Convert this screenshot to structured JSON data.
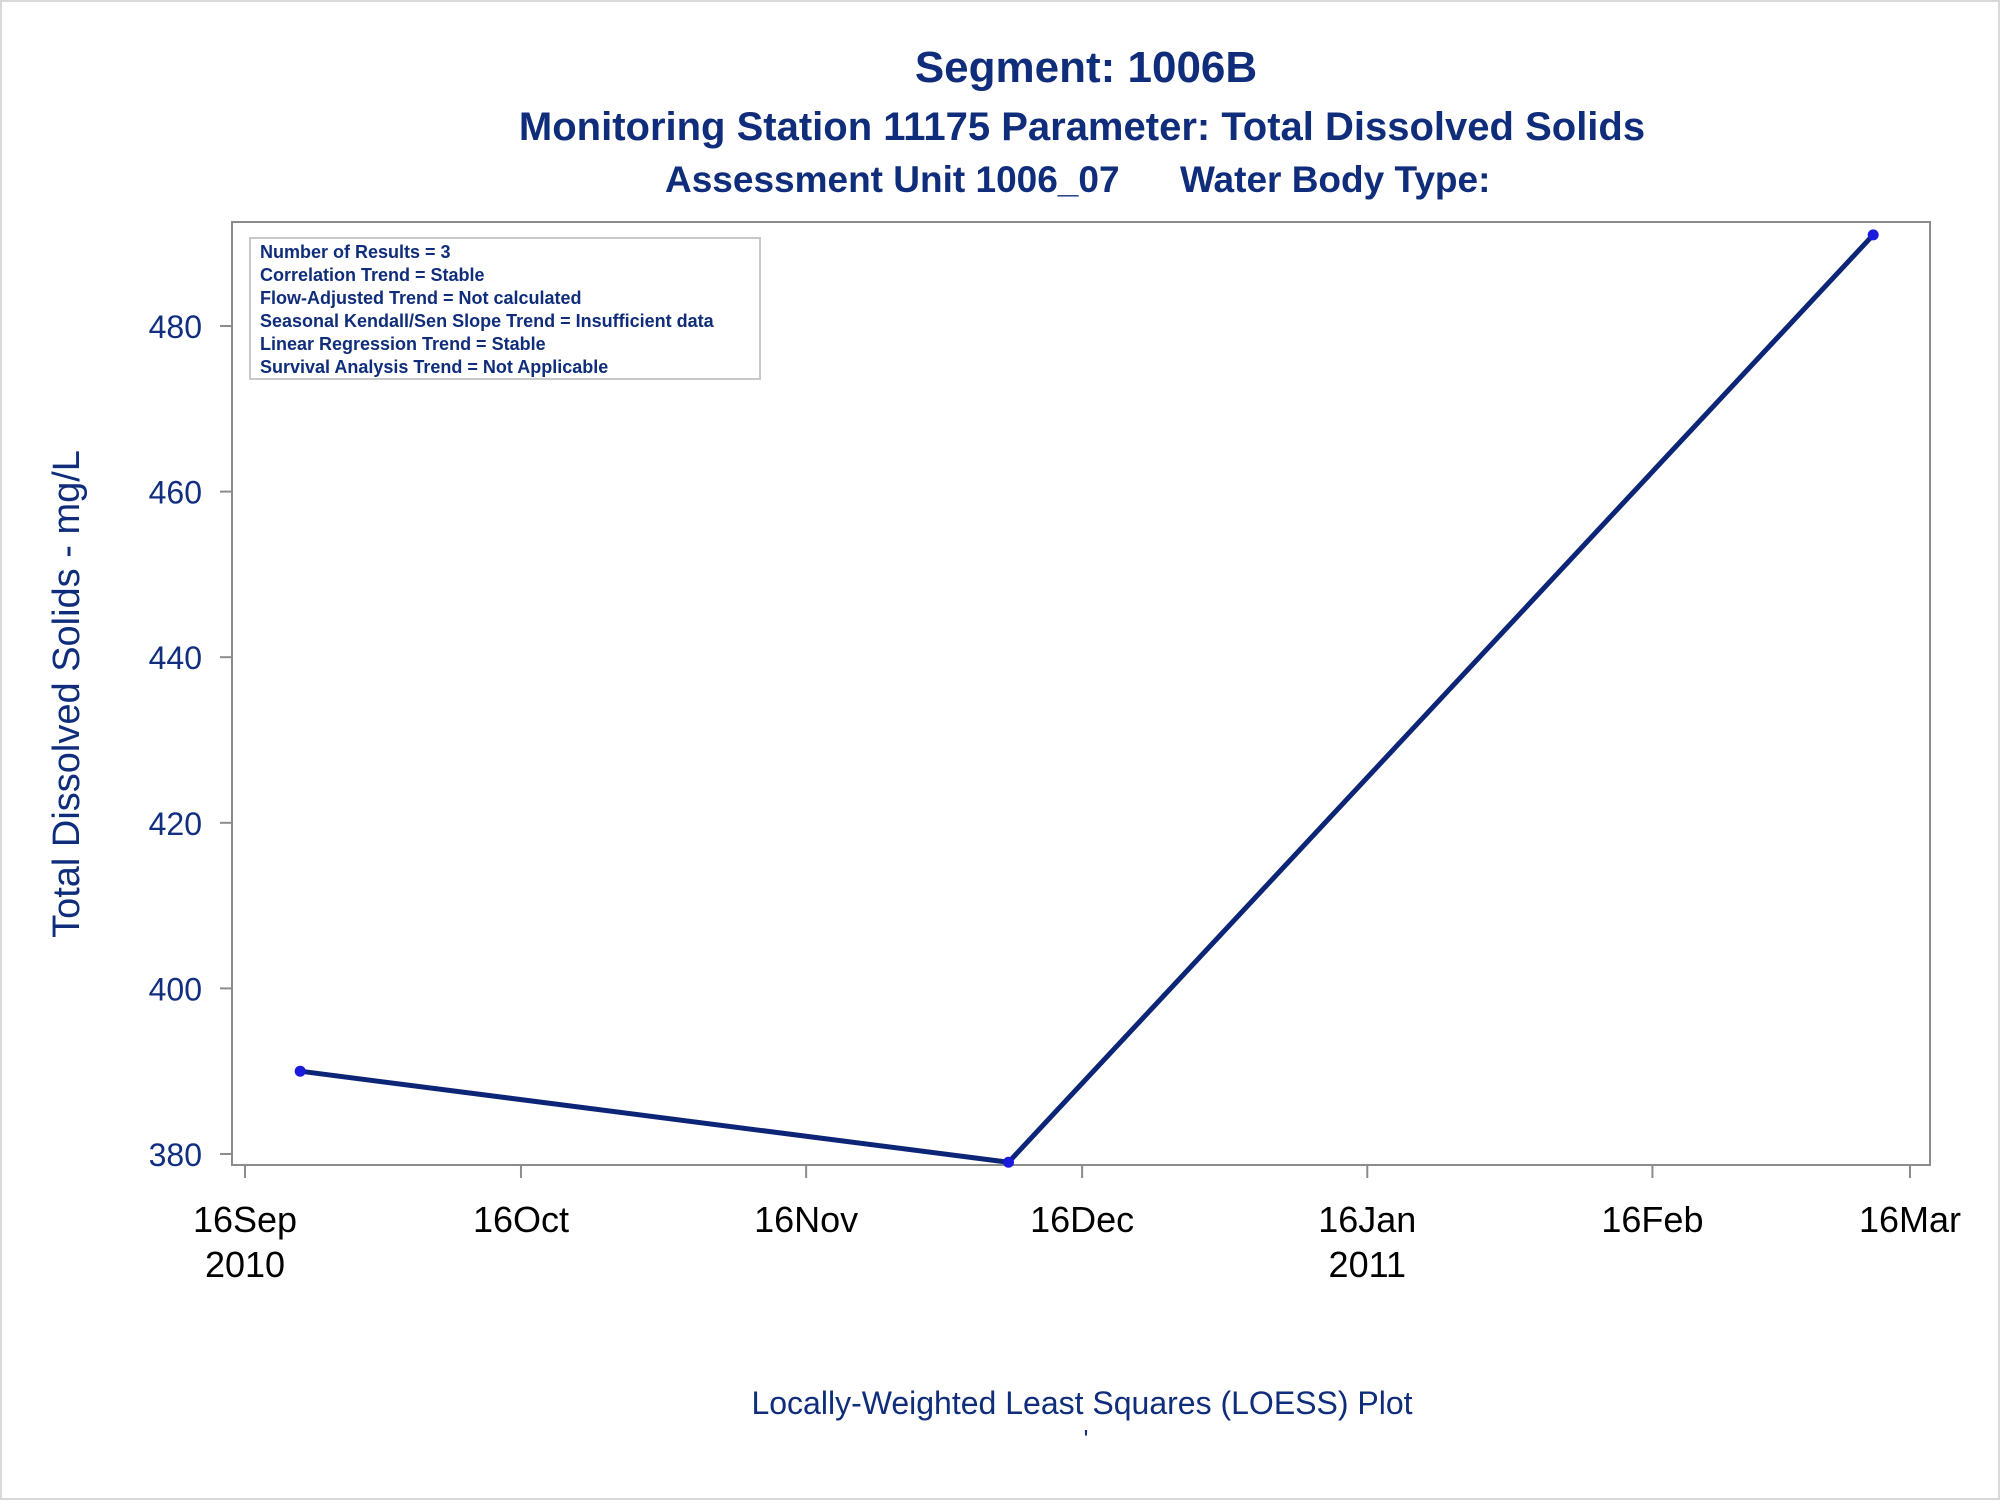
{
  "chart_data": {
    "type": "line",
    "title": "Segment: 1006B",
    "subtitle": "Monitoring Station 11175 Parameter: Total Dissolved Solids",
    "subtitle2_left": "Assessment Unit 1006_07",
    "subtitle2_right": "Water Body Type:",
    "ylabel": "Total Dissolved Solids - mg/L",
    "footnote": "Locally-Weighted Least Squares (LOESS) Plot",
    "footnote_mark": "'",
    "ylim": [
      378,
      492
    ],
    "xlim": [
      "2010-09-16",
      "2011-03-16"
    ],
    "y_ticks": [
      380,
      400,
      420,
      440,
      460,
      480
    ],
    "x_ticks": [
      {
        "date": "2010-09-16",
        "label": "16Sep",
        "year": "2010"
      },
      {
        "date": "2010-10-16",
        "label": "16Oct",
        "year": ""
      },
      {
        "date": "2010-11-16",
        "label": "16Nov",
        "year": ""
      },
      {
        "date": "2010-12-16",
        "label": "16Dec",
        "year": ""
      },
      {
        "date": "2011-01-16",
        "label": "16Jan",
        "year": "2011"
      },
      {
        "date": "2011-02-16",
        "label": "16Feb",
        "year": ""
      },
      {
        "date": "2011-03-16",
        "label": "16Mar",
        "year": ""
      }
    ],
    "series": [
      {
        "points": [
          {
            "x": "2010-09-22",
            "y": 390
          },
          {
            "x": "2010-12-08",
            "y": 379
          },
          {
            "x": "2011-03-12",
            "y": 491
          }
        ]
      }
    ],
    "stats_box": [
      "Number of Results = 3",
      "Correlation Trend = Stable",
      "Flow-Adjusted Trend = Not calculated",
      "Seasonal Kendall/Sen Slope Trend = Insufficient data",
      "Linear Regression Trend = Stable",
      "Survival Analysis Trend = Not Applicable"
    ],
    "grid": false,
    "line_color": "#0c2577",
    "marker_color": "#1b1bdc",
    "axis_color": "#8c8c8c",
    "text_color": "#0f2d7a"
  }
}
